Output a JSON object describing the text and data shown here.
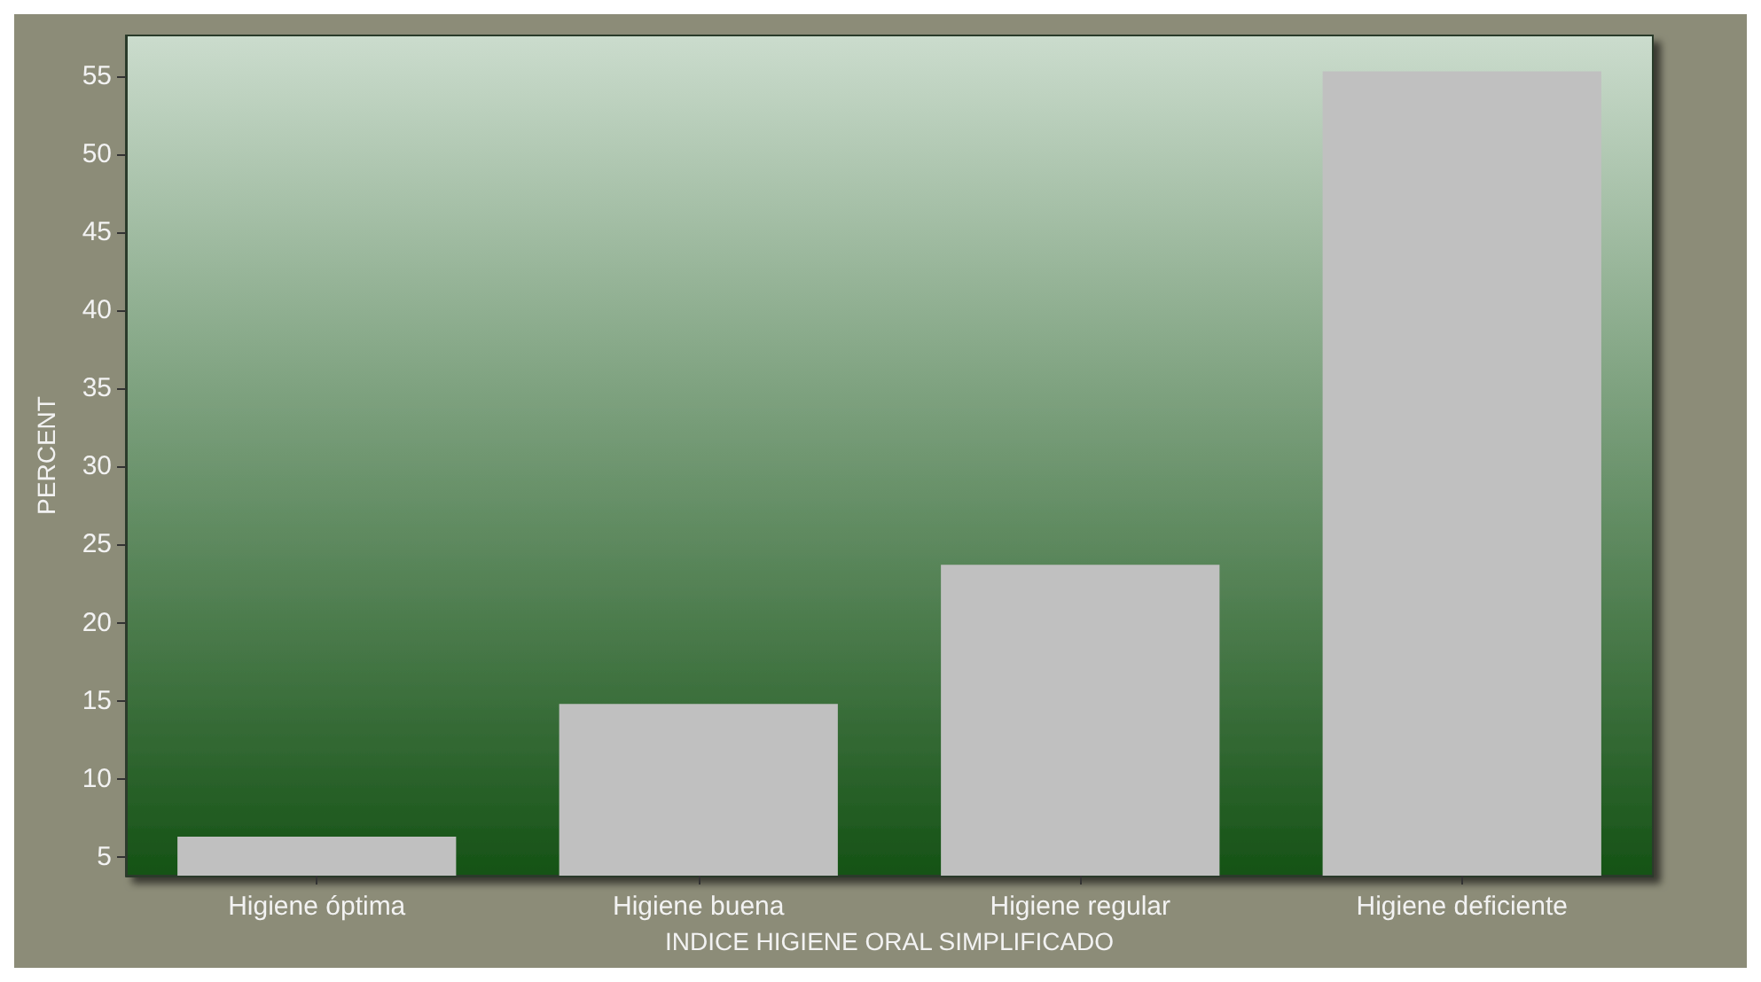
{
  "chart_data": {
    "type": "bar",
    "xlabel": "INDICE HIGIENE ORAL SIMPLIFICADO",
    "ylabel": "PERCENT",
    "categories": [
      "Higiene óptima",
      "Higiene buena",
      "Higiene regular",
      "Higiene deficiente"
    ],
    "values": [
      6.3,
      14.8,
      23.7,
      55.3
    ],
    "color": "#c0c0c0",
    "ylim": [
      3.8,
      57.6
    ],
    "yticks": [
      5,
      10,
      15,
      20,
      25,
      30,
      35,
      40,
      45,
      50,
      55
    ],
    "grid": false
  }
}
